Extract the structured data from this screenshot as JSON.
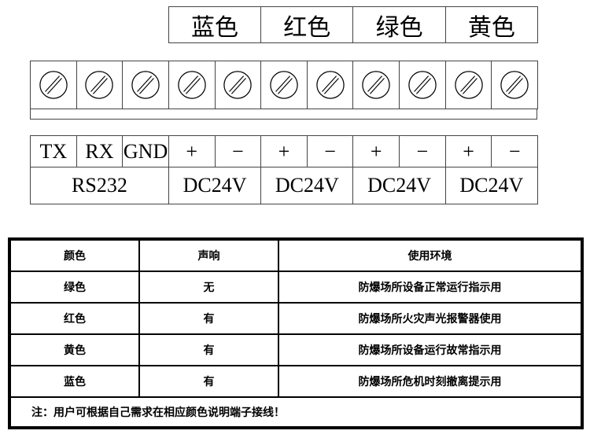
{
  "color_headers": [
    "蓝色",
    "红色",
    "绿色",
    "黄色"
  ],
  "terminal_count": 11,
  "terminal_labels": [
    "TX",
    "RX",
    "GND",
    "+",
    "−",
    "+",
    "−",
    "+",
    "−",
    "+",
    "−"
  ],
  "group_labels": [
    "RS232",
    "DC24V",
    "DC24V",
    "DC24V",
    "DC24V"
  ],
  "table": {
    "headers": [
      "颜色",
      "声响",
      "使用环境"
    ],
    "rows": [
      [
        "绿色",
        "无",
        "防爆场所设备正常运行指示用"
      ],
      [
        "红色",
        "有",
        "防爆场所火灾声光报警器使用"
      ],
      [
        "黄色",
        "有",
        "防爆场所设备运行故常指示用"
      ],
      [
        "蓝色",
        "有",
        "防爆场所危机时刻撤离提示用"
      ]
    ],
    "note": "注：用户可根据自己需求在相应颜色说明端子接线！"
  }
}
